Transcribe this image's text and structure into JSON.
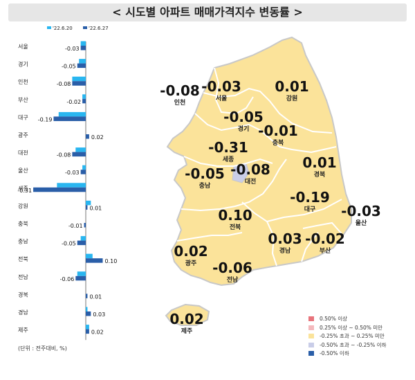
{
  "title": "< 시도별 아파트 매매가격지수 변동률 >",
  "unit_note": "(단위 : 전주대비, %)",
  "colors": {
    "prev": "#29b6f0",
    "curr": "#2a5ea8",
    "land": "#fbe39a",
    "land_border": "#c8c8c8",
    "sejong_fill": "#c9cde8",
    "axis": "#555555"
  },
  "map_labels": [
    {
      "region": "인천",
      "value": "-0.08"
    },
    {
      "region": "서울",
      "value": "-0.03"
    },
    {
      "region": "강원",
      "value": "0.01"
    },
    {
      "region": "경기",
      "value": "-0.05"
    },
    {
      "region": "충북",
      "value": "-0.01"
    },
    {
      "region": "세종",
      "value": "-0.31"
    },
    {
      "region": "충남",
      "value": "-0.05"
    },
    {
      "region": "대전",
      "value": "-0.08"
    },
    {
      "region": "경북",
      "value": "0.01"
    },
    {
      "region": "대구",
      "value": "-0.19"
    },
    {
      "region": "울산",
      "value": "-0.03"
    },
    {
      "region": "전북",
      "value": "0.10"
    },
    {
      "region": "경남",
      "value": "0.03"
    },
    {
      "region": "부산",
      "value": "-0.02"
    },
    {
      "region": "광주",
      "value": "0.02"
    },
    {
      "region": "전남",
      "value": "-0.06"
    },
    {
      "region": "제주",
      "value": "0.02"
    }
  ],
  "map_legend": [
    {
      "label": "0.50% 이상",
      "color": "#e8747c"
    },
    {
      "label": "0.25% 이상 ~ 0.50% 미만",
      "color": "#f4b9bd"
    },
    {
      "label": "-0.25% 초과 ~ 0.25% 미만",
      "color": "#fbe39a"
    },
    {
      "label": "-0.50% 초과 ~ -0.25% 이하",
      "color": "#c9cde8"
    },
    {
      "label": "-0.50% 이하",
      "color": "#2a5ea8"
    }
  ],
  "chart_data": {
    "type": "bar",
    "orientation": "horizontal",
    "categories": [
      "서울",
      "경기",
      "인천",
      "부산",
      "대구",
      "광주",
      "대전",
      "울산",
      "세종",
      "강원",
      "충북",
      "충남",
      "전북",
      "전남",
      "경북",
      "경남",
      "제주"
    ],
    "series": [
      {
        "name": "'22.6.20",
        "values": [
          -0.03,
          -0.04,
          -0.08,
          -0.02,
          -0.16,
          0.0,
          -0.06,
          -0.02,
          -0.17,
          0.03,
          0.0,
          -0.03,
          0.04,
          -0.05,
          0.0,
          0.01,
          0.02
        ]
      },
      {
        "name": "'22.6.27",
        "values": [
          -0.03,
          -0.05,
          -0.08,
          -0.02,
          -0.19,
          0.02,
          -0.08,
          -0.03,
          -0.31,
          0.01,
          -0.01,
          -0.05,
          0.1,
          -0.06,
          0.01,
          0.03,
          0.02
        ]
      }
    ],
    "value_labels": [
      "-0.03",
      "-0.05",
      "-0.08",
      "-0.02",
      "-0.19",
      "0.02",
      "-0.08",
      "-0.03",
      "-0.31",
      "0.01",
      "-0.01",
      "-0.05",
      "0.10",
      "-0.06",
      "0.01",
      "0.03",
      "0.02"
    ],
    "legend": "top",
    "grid": false
  }
}
